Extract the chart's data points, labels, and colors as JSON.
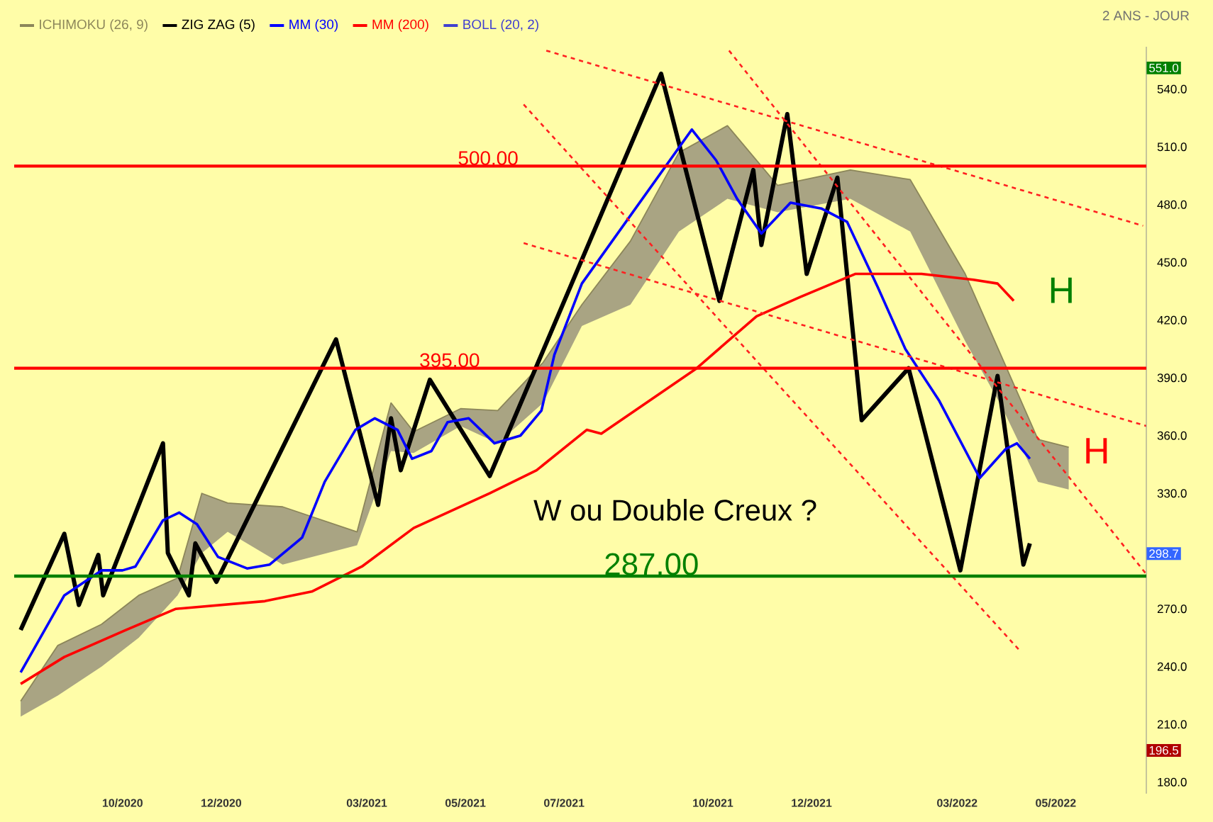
{
  "chart_data": {
    "type": "line",
    "xlim": [
      "2020-07-26",
      "2022-06-26"
    ],
    "ylim": [
      174,
      562
    ],
    "xticks": [
      {
        "value": "2020-10-01",
        "label": "10/2020"
      },
      {
        "value": "2020-12-01",
        "label": "12/2020"
      },
      {
        "value": "2021-03-01",
        "label": "03/2021"
      },
      {
        "value": "2021-05-01",
        "label": "05/2021"
      },
      {
        "value": "2021-07-01",
        "label": "07/2021"
      },
      {
        "value": "2021-10-01",
        "label": "10/2021"
      },
      {
        "value": "2021-12-01",
        "label": "12/2021"
      },
      {
        "value": "2022-03-01",
        "label": "03/2022"
      },
      {
        "value": "2022-05-01",
        "label": "05/2022"
      }
    ],
    "yticks": [
      {
        "value": 180,
        "label": "180.0"
      },
      {
        "value": 210,
        "label": "210.0"
      },
      {
        "value": 240,
        "label": "240.0"
      },
      {
        "value": 270,
        "label": "270.0"
      },
      {
        "value": 330,
        "label": "330.0"
      },
      {
        "value": 360,
        "label": "360.0"
      },
      {
        "value": 390,
        "label": "390.0"
      },
      {
        "value": 420,
        "label": "420.0"
      },
      {
        "value": 450,
        "label": "450.0"
      },
      {
        "value": 480,
        "label": "480.0"
      },
      {
        "value": 510,
        "label": "510.0"
      },
      {
        "value": 540,
        "label": "540.0"
      }
    ],
    "legend": "top left",
    "series": [
      {
        "name": "ICHIMOKU (26, 9)",
        "type": "line",
        "color": "#8c865a",
        "x": [
          "2020-07-30",
          "2020-08-22",
          "2020-09-18",
          "2020-10-11",
          "2020-11-04",
          "2020-11-19",
          "2020-12-05",
          "2021-01-08",
          "2021-02-23",
          "2021-03-16",
          "2021-03-30",
          "2021-04-28",
          "2021-05-21",
          "2021-06-18",
          "2021-07-12",
          "2021-08-11",
          "2021-09-10",
          "2021-10-10",
          "2021-11-10",
          "2021-12-25",
          "2022-01-31",
          "2022-03-06",
          "2022-03-28",
          "2022-04-20",
          "2022-05-09"
        ],
        "values": [
          222,
          251,
          262,
          277,
          286,
          330,
          325,
          323,
          310,
          377,
          362,
          374,
          373,
          398,
          428,
          461,
          507,
          521,
          490,
          498,
          493,
          444,
          402,
          358,
          354
        ],
        "lower": [
          214,
          225,
          240,
          255,
          277,
          299,
          310,
          293,
          303,
          352,
          351,
          365,
          356,
          377,
          417,
          428,
          466,
          483,
          476,
          483,
          466,
          409,
          376,
          336,
          332
        ],
        "upper": [
          222,
          251,
          262,
          277,
          286,
          330,
          325,
          323,
          310,
          377,
          362,
          374,
          373,
          398,
          428,
          461,
          507,
          521,
          490,
          498,
          493,
          444,
          402,
          358,
          354
        ]
      },
      {
        "name": "ZIG ZAG (5)",
        "color": "#000000",
        "x": [
          "2020-07-30",
          "2020-08-26",
          "2020-09-04",
          "2020-09-16",
          "2020-09-19",
          "2020-10-26",
          "2020-10-29",
          "2020-11-11",
          "2020-11-15",
          "2020-11-28",
          "2021-02-10",
          "2021-03-08",
          "2021-03-16",
          "2021-03-22",
          "2021-04-09",
          "2021-05-16",
          "2021-08-30",
          "2021-10-05",
          "2021-10-26",
          "2021-10-31",
          "2021-11-16",
          "2021-11-28",
          "2021-12-17",
          "2022-01-01",
          "2022-01-30",
          "2022-03-03",
          "2022-03-26",
          "2022-04-11",
          "2022-04-15"
        ],
        "values": [
          259,
          309,
          272,
          298,
          277,
          356,
          299,
          277,
          304,
          284,
          410,
          324,
          369,
          342,
          389,
          339,
          548,
          430,
          498,
          459,
          527,
          444,
          494,
          368,
          395,
          290,
          391,
          293,
          304
        ]
      },
      {
        "name": "MM (30)",
        "color": "#0000ff",
        "x": [
          "2020-07-30",
          "2020-08-26",
          "2020-09-18",
          "2020-10-01",
          "2020-10-09",
          "2020-10-26",
          "2020-11-05",
          "2020-11-16",
          "2020-11-29",
          "2020-12-17",
          "2020-12-31",
          "2021-01-20",
          "2021-02-03",
          "2021-02-22",
          "2021-03-06",
          "2021-03-20",
          "2021-03-29",
          "2021-04-10",
          "2021-04-20",
          "2021-05-03",
          "2021-05-19",
          "2021-06-04",
          "2021-06-17",
          "2021-06-25",
          "2021-07-12",
          "2021-09-18",
          "2021-10-03",
          "2021-10-16",
          "2021-10-31",
          "2021-11-18",
          "2021-12-07",
          "2021-12-23",
          "2022-01-11",
          "2022-01-28",
          "2022-02-18",
          "2022-03-15",
          "2022-03-31",
          "2022-04-07",
          "2022-04-15"
        ],
        "values": [
          237,
          277,
          290,
          290,
          292,
          316,
          320,
          314,
          297,
          291,
          293,
          307,
          336,
          363,
          369,
          363,
          348,
          352,
          367,
          369,
          356,
          360,
          373,
          402,
          439,
          519,
          503,
          483,
          465,
          481,
          478,
          471,
          437,
          405,
          378,
          338,
          353,
          356,
          348
        ]
      },
      {
        "name": "MM (200)",
        "color": "#ff0000",
        "x": [
          "2020-07-30",
          "2020-08-26",
          "2020-10-03",
          "2020-11-03",
          "2020-12-28",
          "2021-01-26",
          "2021-02-26",
          "2021-03-30",
          "2021-05-16",
          "2021-06-14",
          "2021-07-15",
          "2021-07-24",
          "2021-09-21",
          "2021-10-28",
          "2021-11-24",
          "2021-12-28",
          "2022-02-07",
          "2022-03-11",
          "2022-03-26",
          "2022-04-05"
        ],
        "values": [
          231,
          245,
          259,
          270,
          274,
          279,
          292,
          312,
          330,
          342,
          363,
          361,
          395,
          422,
          432,
          444,
          444,
          441,
          439,
          430
        ]
      },
      {
        "type": "line",
        "line_style": "dashed",
        "color": "#ff2020",
        "x": [
          "2021-06-20",
          "2022-06-24"
        ],
        "values": [
          560,
          469
        ]
      },
      {
        "type": "line",
        "line_style": "dashed",
        "color": "#ff2020",
        "x": [
          "2021-06-06",
          "2022-06-26"
        ],
        "values": [
          460,
          365
        ]
      },
      {
        "type": "line",
        "line_style": "dashed",
        "color": "#ff2020",
        "x": [
          "2021-10-11",
          "2022-06-26"
        ],
        "values": [
          560,
          288
        ]
      },
      {
        "type": "line",
        "line_style": "dashed",
        "color": "#ff2020",
        "x": [
          "2021-06-06",
          "2022-04-08"
        ],
        "values": [
          532,
          249
        ]
      }
    ],
    "ref_lines": [
      {
        "axis": "y",
        "value": 500,
        "label": "500.00",
        "color": "#ff0000"
      },
      {
        "axis": "y",
        "value": 395,
        "label": "395.00",
        "color": "#ff0000"
      },
      {
        "axis": "y",
        "value": 287,
        "label": "287.00",
        "color": "#008000"
      }
    ],
    "annotations": [
      "2 ANS - JOUR",
      "BOLL (20, 2)",
      "W ou Double Creux ?",
      "H",
      "H",
      {
        "text": "551.0",
        "y": 551
      },
      {
        "text": "298.7",
        "y": 298.7
      },
      {
        "text": "196.5",
        "y": 196.5
      }
    ]
  }
}
